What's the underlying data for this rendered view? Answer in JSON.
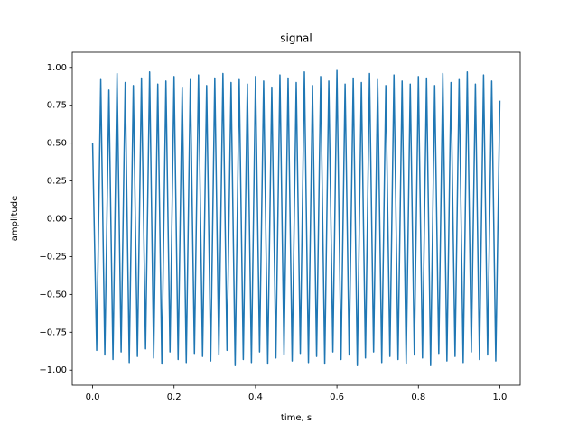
{
  "chart_data": {
    "type": "line",
    "title": "signal",
    "x_label": "time, s",
    "y_label": "amplitude",
    "x": [
      0,
      0.01,
      0.02,
      0.03,
      0.04,
      0.05,
      0.06,
      0.07,
      0.08,
      0.09,
      0.1,
      0.11,
      0.12,
      0.13,
      0.14,
      0.15,
      0.16,
      0.17,
      0.18,
      0.19,
      0.2,
      0.21,
      0.22,
      0.23,
      0.24,
      0.25,
      0.26,
      0.27,
      0.28,
      0.29,
      0.3,
      0.31,
      0.32,
      0.33,
      0.34,
      0.35,
      0.36,
      0.37,
      0.38,
      0.39,
      0.4,
      0.41,
      0.42,
      0.43,
      0.44,
      0.45,
      0.46,
      0.47,
      0.48,
      0.49,
      0.5,
      0.51,
      0.52,
      0.53,
      0.54,
      0.55,
      0.56,
      0.57,
      0.58,
      0.59,
      0.6,
      0.61,
      0.62,
      0.63,
      0.64,
      0.65,
      0.66,
      0.67,
      0.68,
      0.69,
      0.7,
      0.71,
      0.72,
      0.73,
      0.74,
      0.75,
      0.76,
      0.77,
      0.78,
      0.79,
      0.8,
      0.81,
      0.82,
      0.83,
      0.84,
      0.85,
      0.86,
      0.87,
      0.88,
      0.89,
      0.9,
      0.91,
      0.92,
      0.93,
      0.94,
      0.95,
      0.96,
      0.97,
      0.98,
      0.99,
      1.0
    ],
    "series": [
      {
        "name": "signal",
        "color": "#1f77b4",
        "values": [
          0.5,
          -0.87,
          0.92,
          -0.9,
          0.85,
          -0.93,
          0.96,
          -0.88,
          0.9,
          -0.95,
          0.88,
          -0.91,
          0.93,
          -0.86,
          0.97,
          -0.92,
          0.89,
          -0.96,
          0.91,
          -0.88,
          0.94,
          -0.93,
          0.87,
          -0.95,
          0.92,
          -0.89,
          0.95,
          -0.91,
          0.88,
          -0.94,
          0.93,
          -0.9,
          0.96,
          -0.87,
          0.9,
          -0.97,
          0.92,
          -0.93,
          0.89,
          -0.95,
          0.94,
          -0.88,
          0.91,
          -0.96,
          0.87,
          -0.92,
          0.95,
          -0.9,
          0.93,
          -0.94,
          0.9,
          -0.89,
          0.97,
          -0.95,
          0.88,
          -0.91,
          0.94,
          -0.96,
          0.91,
          -0.88,
          0.98,
          -0.93,
          0.89,
          -0.9,
          0.93,
          -0.97,
          0.9,
          -0.92,
          0.96,
          -0.88,
          0.92,
          -0.95,
          0.88,
          -0.91,
          0.95,
          -0.93,
          0.91,
          -0.96,
          0.89,
          -0.9,
          0.94,
          -0.92,
          0.93,
          -0.97,
          0.88,
          -0.89,
          0.96,
          -0.94,
          0.9,
          -0.91,
          0.92,
          -0.95,
          0.97,
          -0.88,
          0.89,
          -0.93,
          0.95,
          -0.9,
          0.91,
          -0.94,
          0.78
        ]
      }
    ],
    "xlim": [
      -0.05,
      1.05
    ],
    "ylim": [
      -1.1,
      1.1
    ],
    "xticks": [
      {
        "value": 0,
        "label": "0.0"
      },
      {
        "value": 0.2,
        "label": "0.2"
      },
      {
        "value": 0.4,
        "label": "0.4"
      },
      {
        "value": 0.6,
        "label": "0.6"
      },
      {
        "value": 0.8,
        "label": "0.8"
      },
      {
        "value": 1,
        "label": "1.0"
      }
    ],
    "yticks": [
      {
        "value": -1,
        "label": "−1.00"
      },
      {
        "value": -0.75,
        "label": "−0.75"
      },
      {
        "value": -0.5,
        "label": "−0.50"
      },
      {
        "value": -0.25,
        "label": "−0.25"
      },
      {
        "value": 0,
        "label": "0.00"
      },
      {
        "value": 0.25,
        "label": "0.25"
      },
      {
        "value": 0.5,
        "label": "0.50"
      },
      {
        "value": 0.75,
        "label": "0.75"
      },
      {
        "value": 1,
        "label": "1.00"
      }
    ],
    "grid": false
  }
}
